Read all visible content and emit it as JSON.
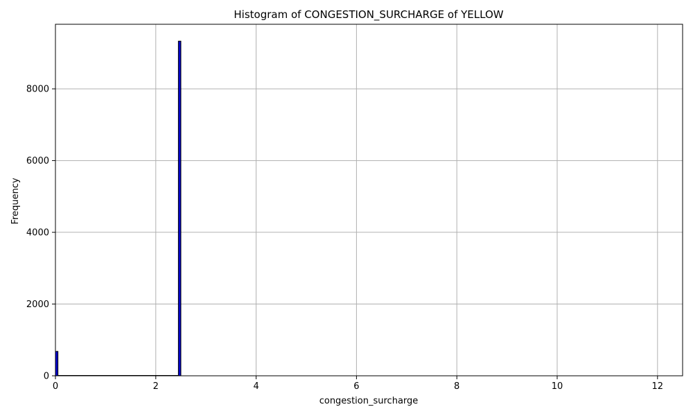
{
  "chart_data": {
    "type": "bar",
    "title": "Histogram of CONGESTION_SURCHARGE of YELLOW",
    "xlabel": "congestion_surcharge",
    "ylabel": "Frequency",
    "xlim": [
      0,
      12.5
    ],
    "ylim": [
      0,
      9800
    ],
    "xticks": [
      0,
      2,
      4,
      6,
      8,
      10,
      12
    ],
    "yticks": [
      0,
      2000,
      4000,
      6000,
      8000
    ],
    "grid": true,
    "bar_color": "#0000cc",
    "edge_color": "#000000",
    "bins": [
      {
        "x0": 0.0,
        "x1": 0.05,
        "count": 680
      },
      {
        "x0": 2.45,
        "x1": 2.5,
        "count": 9330
      }
    ]
  }
}
